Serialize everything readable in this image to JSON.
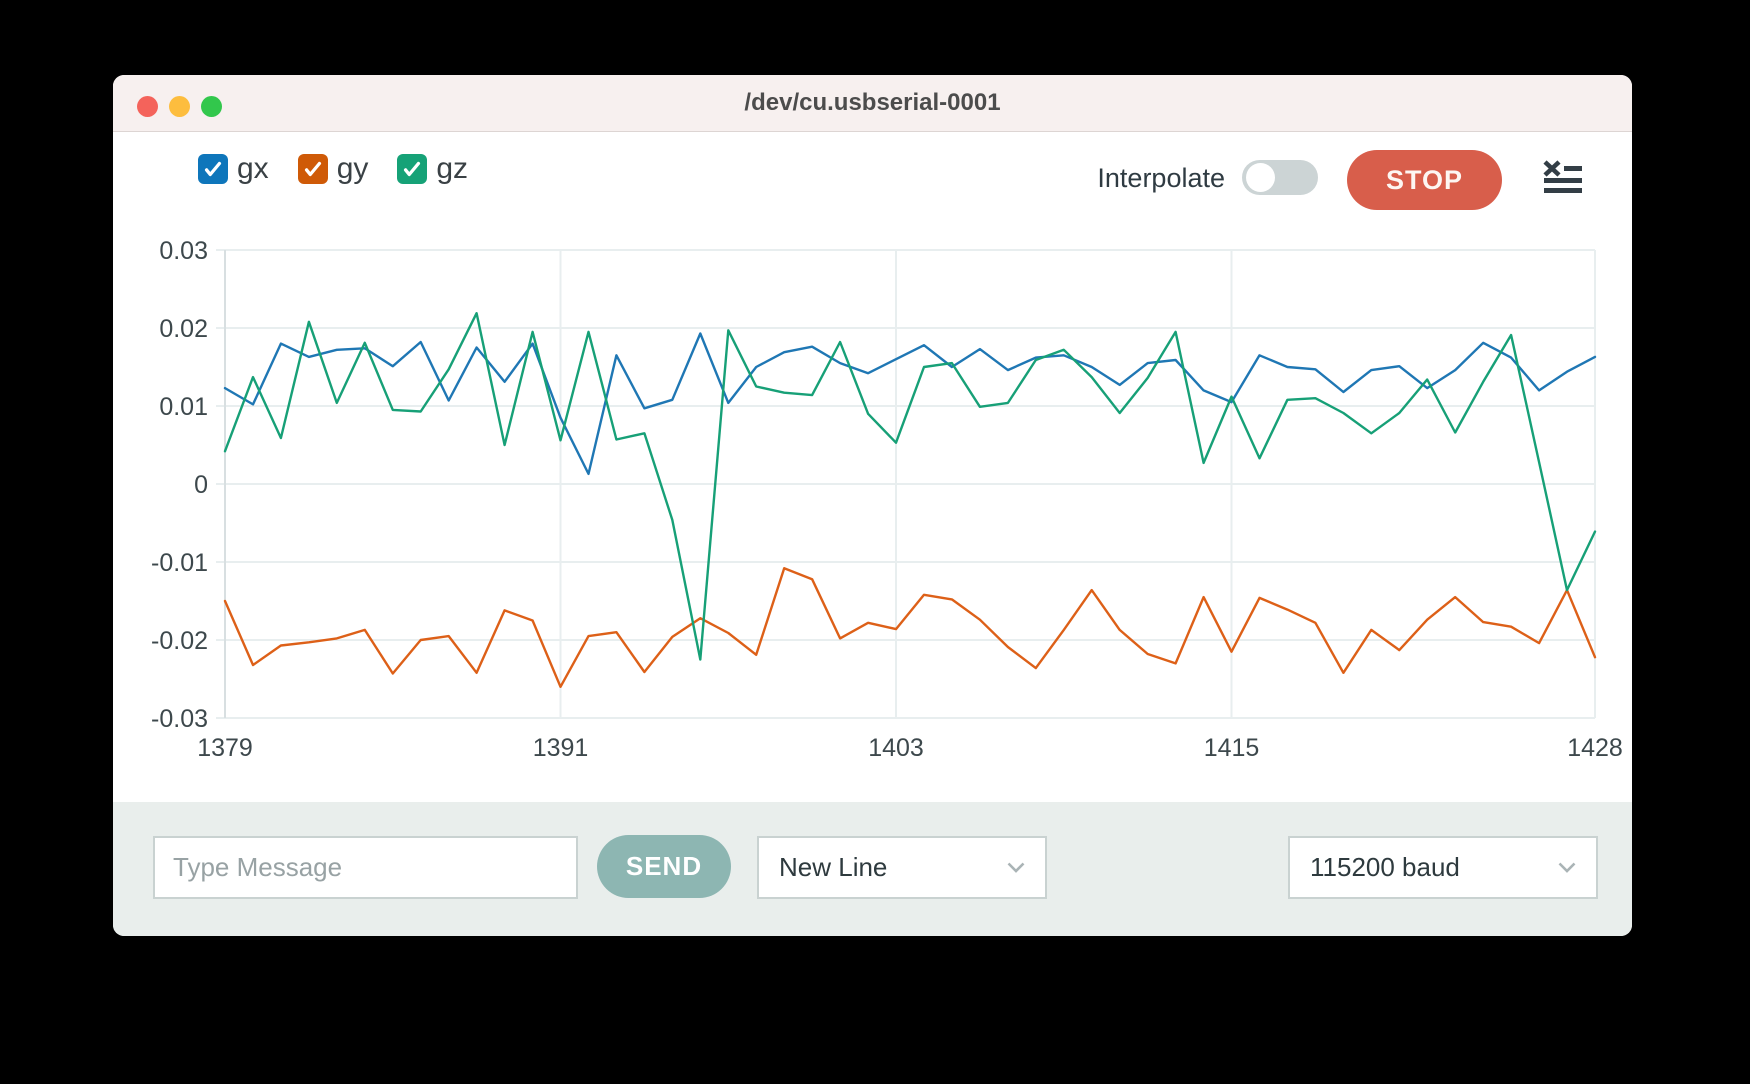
{
  "window": {
    "title": "/dev/cu.usbserial-0001"
  },
  "traffic_lights": {
    "close": "#f4635b",
    "minimize": "#fdbd3e",
    "zoom": "#32c74c"
  },
  "legend": {
    "items": [
      {
        "label": "gx",
        "color": "#0e76bb",
        "checked": true
      },
      {
        "label": "gy",
        "color": "#cf5a07",
        "checked": true
      },
      {
        "label": "gz",
        "color": "#16a277",
        "checked": true
      }
    ]
  },
  "controls": {
    "interpolate_label": "Interpolate",
    "interpolate_on": false,
    "stop_label": "STOP",
    "stop_color": "#d85e4b"
  },
  "chart_data": {
    "type": "line",
    "x": [
      1379,
      1380,
      1381,
      1382,
      1383,
      1384,
      1385,
      1386,
      1387,
      1388,
      1389,
      1390,
      1391,
      1392,
      1393,
      1394,
      1395,
      1396,
      1397,
      1398,
      1399,
      1400,
      1401,
      1402,
      1403,
      1404,
      1405,
      1406,
      1407,
      1408,
      1409,
      1410,
      1411,
      1412,
      1413,
      1414,
      1415,
      1416,
      1417,
      1418,
      1419,
      1420,
      1421,
      1422,
      1423,
      1424,
      1425,
      1426,
      1427,
      1428
    ],
    "series": [
      {
        "name": "gx",
        "color": "#1f77b4",
        "values": [
          0.0123,
          0.0102,
          0.018,
          0.0163,
          0.0172,
          0.0174,
          0.0151,
          0.0182,
          0.0107,
          0.0175,
          0.0131,
          0.018,
          0.0085,
          0.0013,
          0.0165,
          0.0097,
          0.0108,
          0.0193,
          0.0104,
          0.015,
          0.0169,
          0.0176,
          0.0155,
          0.0142,
          0.016,
          0.0178,
          0.015,
          0.0173,
          0.0146,
          0.0162,
          0.0165,
          0.015,
          0.0127,
          0.0155,
          0.0159,
          0.012,
          0.0105,
          0.0165,
          0.015,
          0.0147,
          0.0118,
          0.0146,
          0.0151,
          0.0123,
          0.0146,
          0.0181,
          0.0162,
          0.012,
          0.0144,
          0.0163
        ]
      },
      {
        "name": "gy",
        "color": "#dd6018",
        "values": [
          -0.015,
          -0.0232,
          -0.0207,
          -0.0203,
          -0.0198,
          -0.0187,
          -0.0243,
          -0.02,
          -0.0195,
          -0.0242,
          -0.0162,
          -0.0175,
          -0.026,
          -0.0195,
          -0.019,
          -0.0241,
          -0.0196,
          -0.0172,
          -0.0191,
          -0.0219,
          -0.0108,
          -0.0122,
          -0.0198,
          -0.0178,
          -0.0186,
          -0.0142,
          -0.0148,
          -0.0174,
          -0.0209,
          -0.0236,
          -0.0187,
          -0.0136,
          -0.0187,
          -0.0218,
          -0.023,
          -0.0145,
          -0.0215,
          -0.0146,
          -0.0161,
          -0.0178,
          -0.0242,
          -0.0187,
          -0.0213,
          -0.0174,
          -0.0145,
          -0.0177,
          -0.0183,
          -0.0204,
          -0.0136,
          -0.0222
        ]
      },
      {
        "name": "gz",
        "color": "#17a077",
        "values": [
          0.0042,
          0.0137,
          0.0059,
          0.0208,
          0.0104,
          0.0181,
          0.0095,
          0.0093,
          0.0147,
          0.0219,
          0.005,
          0.0195,
          0.0056,
          0.0195,
          0.0057,
          0.0065,
          -0.0046,
          -0.0225,
          0.0197,
          0.0125,
          0.0117,
          0.0114,
          0.0182,
          0.009,
          0.0053,
          0.015,
          0.0155,
          0.0099,
          0.0104,
          0.0159,
          0.0172,
          0.0137,
          0.0091,
          0.0136,
          0.0195,
          0.0027,
          0.0112,
          0.0033,
          0.0108,
          0.011,
          0.0091,
          0.0065,
          0.0091,
          0.0134,
          0.0066,
          0.0131,
          0.0191,
          0.0028,
          -0.0136,
          -0.0061
        ]
      }
    ],
    "xticks": [
      1379,
      1391,
      1403,
      1415,
      1428
    ],
    "yticks": [
      0.03,
      0.02,
      0.01,
      0,
      -0.01,
      -0.02,
      -0.03
    ],
    "xlim": [
      1379,
      1428
    ],
    "ylim": [
      -0.03,
      0.03
    ],
    "grid": true,
    "legend_position": "top-left",
    "title": "",
    "xlabel": "",
    "ylabel": ""
  },
  "footer": {
    "message_placeholder": "Type Message",
    "send_label": "SEND",
    "line_ending_value": "New Line",
    "baud_value": "115200 baud"
  }
}
